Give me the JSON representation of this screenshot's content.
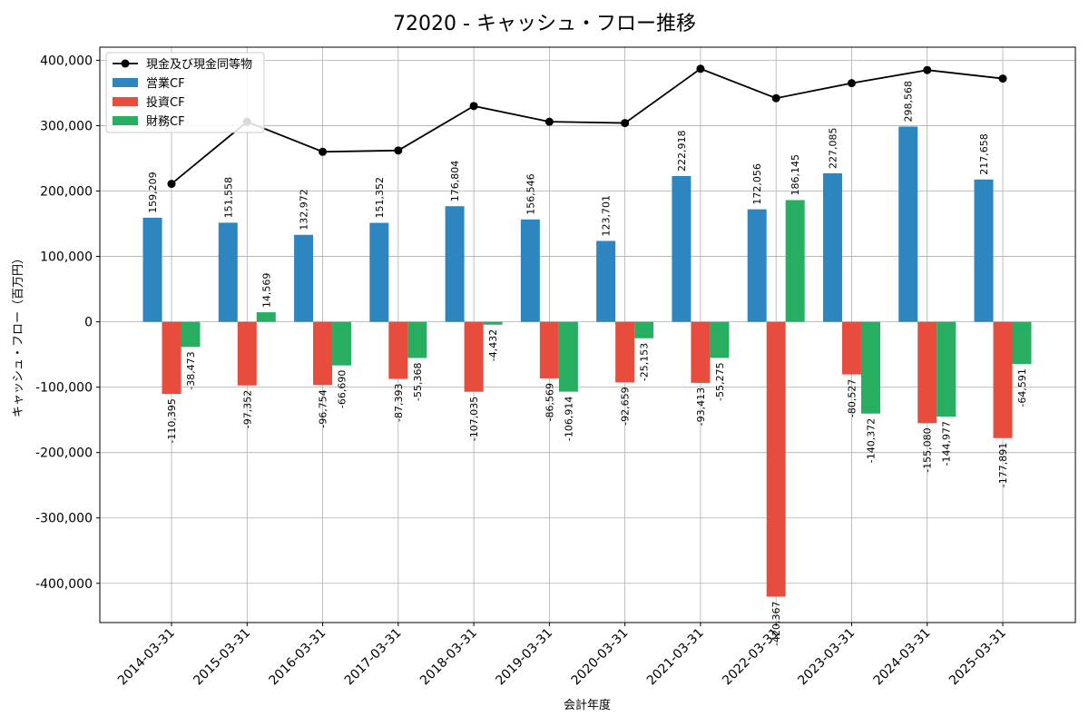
{
  "chart_data": {
    "type": "bar",
    "title": "72020 - キャッシュ・フロー推移",
    "xlabel": "会計年度",
    "ylabel": "キャッシュ・フロー（百万円）",
    "ylim": [
      -460000,
      420000
    ],
    "yticks": [
      -400000,
      -300000,
      -200000,
      -100000,
      0,
      100000,
      200000,
      300000,
      400000
    ],
    "ytick_labels": [
      "-400,000",
      "-300,000",
      "-200,000",
      "-100,000",
      "0",
      "100,000",
      "200,000",
      "300,000",
      "400,000"
    ],
    "grid": true,
    "legend_position": "top-left",
    "categories": [
      "2014-03-31",
      "2015-03-31",
      "2016-03-31",
      "2017-03-31",
      "2018-03-31",
      "2019-03-31",
      "2020-03-31",
      "2021-03-31",
      "2022-03-31",
      "2023-03-31",
      "2024-03-31",
      "2025-03-31"
    ],
    "series": [
      {
        "name": "営業CF",
        "type": "bar",
        "color": "#2e86c1",
        "values": [
          159209,
          151558,
          132972,
          151352,
          176804,
          156546,
          123701,
          222918,
          172056,
          227085,
          298568,
          217658
        ],
        "labels": [
          "159,209",
          "151,558",
          "132,972",
          "151,352",
          "176,804",
          "156,546",
          "123,701",
          "222,918",
          "172,056",
          "227,085",
          "298,568",
          "217,658"
        ]
      },
      {
        "name": "投資CF",
        "type": "bar",
        "color": "#e74c3c",
        "values": [
          -110395,
          -97352,
          -96754,
          -87393,
          -107035,
          -86569,
          -92659,
          -93413,
          -420367,
          -80527,
          -155080,
          -177891
        ],
        "labels": [
          "-110,395",
          "-97,352",
          "-96,754",
          "-87,393",
          "-107,035",
          "-86,569",
          "-92,659",
          "-93,413",
          "-420,367",
          "-80,527",
          "-155,080",
          "-177,891"
        ]
      },
      {
        "name": "財務CF",
        "type": "bar",
        "color": "#27ae60",
        "values": [
          -38473,
          14569,
          -66690,
          -55368,
          -4432,
          -106914,
          -25153,
          -55275,
          186145,
          -140372,
          -144977,
          -64591
        ],
        "labels": [
          "-38,473",
          "14,569",
          "-66,690",
          "-55,368",
          "-4,432",
          "-106,914",
          "-25,153",
          "-55,275",
          "186,145",
          "-140,372",
          "-144,977",
          "-64,591"
        ]
      },
      {
        "name": "現金及び現金同等物",
        "type": "line",
        "color": "#000000",
        "values": [
          211000,
          306000,
          260000,
          262000,
          330000,
          306000,
          304000,
          387000,
          342000,
          365000,
          385000,
          372000
        ]
      }
    ]
  }
}
